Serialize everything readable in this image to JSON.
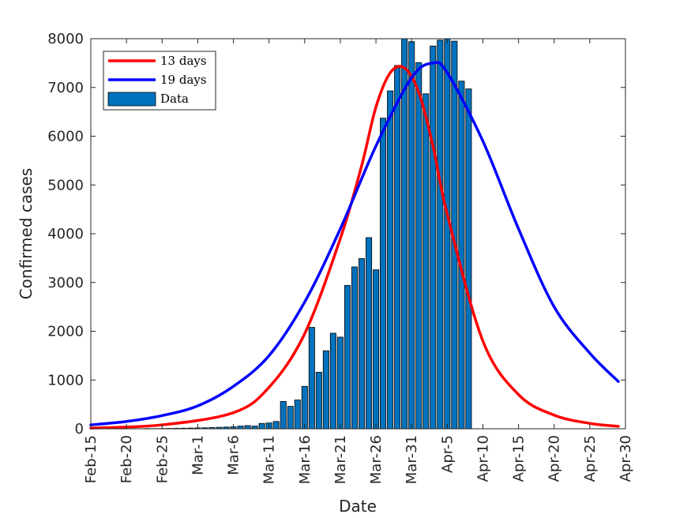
{
  "chart_data": {
    "type": "bar",
    "title": "",
    "xlabel": "Date",
    "ylabel": "Confirmed cases",
    "ylim": [
      0,
      8000
    ],
    "x_range": [
      "Feb-15",
      "Apr-30"
    ],
    "y_ticks": [
      0,
      1000,
      2000,
      3000,
      4000,
      5000,
      6000,
      7000,
      8000
    ],
    "x_ticks": [
      "Feb-15",
      "Feb-20",
      "Feb-25",
      "Mar-1",
      "Mar-6",
      "Mar-11",
      "Mar-16",
      "Mar-21",
      "Mar-26",
      "Mar-31",
      "Apr-5",
      "Apr-10",
      "Apr-15",
      "Apr-20",
      "Apr-25",
      "Apr-30"
    ],
    "legend": {
      "position": "top-left",
      "entries": [
        "13 days",
        "19 days",
        "Data"
      ]
    },
    "grid": false,
    "colors": {
      "data": "#0072BD",
      "series_13": "#ff0000",
      "series_19": "#0000ff",
      "bar_edge": "#000000"
    },
    "bars": {
      "name": "Data",
      "start_date": "Feb-21",
      "values": [
        3,
        2,
        5,
        4,
        6,
        8,
        10,
        12,
        15,
        18,
        20,
        25,
        30,
        35,
        40,
        55,
        65,
        55,
        110,
        120,
        150,
        560,
        460,
        590,
        870,
        2080,
        1160,
        1600,
        1960,
        1880,
        2940,
        3320,
        3490,
        3920,
        3260,
        6370,
        6930,
        7450,
        8000,
        7940,
        7510,
        6870,
        7850,
        7970,
        8000,
        7950,
        7130,
        6970
      ]
    },
    "series": [
      {
        "name": "13 days",
        "dates": [
          "Feb-15",
          "Feb-25",
          "Mar-6",
          "Mar-11",
          "Mar-16",
          "Mar-21",
          "Mar-24",
          "Mar-26",
          "Mar-28",
          "Mar-30",
          "Apr-1",
          "Apr-3",
          "Apr-5",
          "Apr-10",
          "Apr-15",
          "Apr-20",
          "Apr-25",
          "Apr-29"
        ],
        "values": [
          15,
          80,
          330,
          850,
          1950,
          3900,
          5400,
          6600,
          7300,
          7400,
          6900,
          5800,
          4400,
          1800,
          700,
          280,
          110,
          50
        ]
      },
      {
        "name": "19 days",
        "dates": [
          "Feb-15",
          "Feb-20",
          "Feb-25",
          "Mar-1",
          "Mar-6",
          "Mar-11",
          "Mar-16",
          "Mar-21",
          "Mar-26",
          "Mar-31",
          "Apr-3",
          "Apr-5",
          "Apr-10",
          "Apr-15",
          "Apr-20",
          "Apr-25",
          "Apr-29"
        ],
        "values": [
          80,
          150,
          270,
          470,
          870,
          1500,
          2600,
          4100,
          5800,
          7200,
          7500,
          7300,
          5900,
          4100,
          2500,
          1550,
          970
        ]
      }
    ]
  }
}
